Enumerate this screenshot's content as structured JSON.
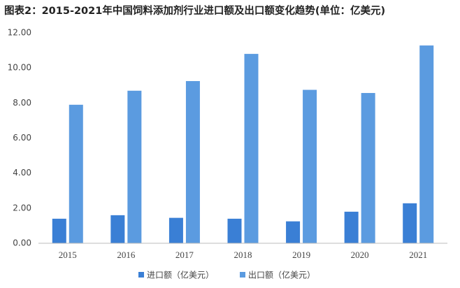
{
  "chart_data": {
    "type": "bar",
    "title": "图表2：2015-2021年中国饲料添加剂行业进口额及出口额变化趋势(单位：亿美元)",
    "categories": [
      "2015",
      "2016",
      "2017",
      "2018",
      "2019",
      "2020",
      "2021"
    ],
    "series": [
      {
        "name": "进口额（亿美元）",
        "color": "#3a7fd5",
        "values": [
          1.4,
          1.6,
          1.45,
          1.4,
          1.25,
          1.8,
          2.28
        ]
      },
      {
        "name": "出口额（亿美元）",
        "color": "#5b9be0",
        "values": [
          7.9,
          8.7,
          9.25,
          10.8,
          8.75,
          8.57,
          11.28
        ]
      }
    ],
    "ylim": [
      0,
      12
    ],
    "yticks": [
      {
        "value": 0,
        "label": "0.00"
      },
      {
        "value": 2,
        "label": "2.00"
      },
      {
        "value": 4,
        "label": "4.00"
      },
      {
        "value": 6,
        "label": "6.00"
      },
      {
        "value": 8,
        "label": "8.00"
      },
      {
        "value": 10,
        "label": "10.00"
      },
      {
        "value": 12,
        "label": "12.00"
      }
    ],
    "grid": false,
    "legend": "bottom"
  }
}
